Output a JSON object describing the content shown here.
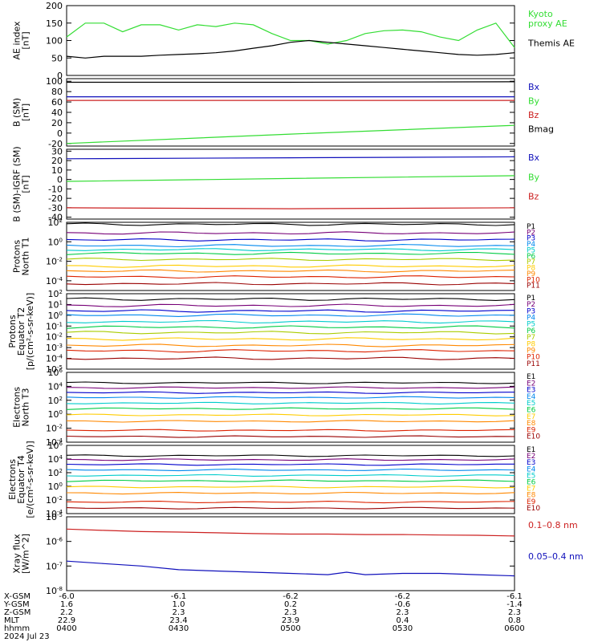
{
  "chart_data": [
    {
      "id": "ae",
      "type": "line",
      "ylabel": [
        "AE index",
        "[nT]"
      ],
      "yticks": [
        "200",
        "150",
        "100",
        "50",
        "0"
      ],
      "ylim": [
        0,
        200
      ],
      "series": [
        {
          "name": "Kyoto proxy AE",
          "label_lines": [
            "Kyoto",
            "proxy AE"
          ],
          "color": "#33dd33",
          "x": [
            0,
            5,
            10,
            15,
            20,
            25,
            30,
            35,
            40,
            45,
            50,
            55,
            60,
            65,
            70,
            75,
            80,
            85,
            90,
            95,
            100,
            105,
            110,
            115,
            120
          ],
          "values": [
            110,
            150,
            150,
            125,
            145,
            145,
            130,
            145,
            140,
            150,
            145,
            120,
            100,
            100,
            90,
            100,
            120,
            128,
            130,
            125,
            110,
            100,
            130,
            150,
            80
          ]
        },
        {
          "name": "Themis AE",
          "label_lines": [
            "Themis AE"
          ],
          "color": "#000000",
          "x": [
            0,
            5,
            10,
            15,
            20,
            25,
            30,
            35,
            40,
            45,
            50,
            55,
            60,
            65,
            70,
            75,
            80,
            85,
            90,
            95,
            100,
            105,
            110,
            115,
            120
          ],
          "values": [
            55,
            50,
            55,
            55,
            55,
            58,
            60,
            62,
            65,
            70,
            78,
            85,
            95,
            100,
            95,
            90,
            85,
            80,
            75,
            70,
            65,
            60,
            58,
            60,
            65
          ]
        }
      ]
    },
    {
      "id": "bsm",
      "type": "line",
      "ylabel": [
        "B (SM)",
        "[nT]"
      ],
      "yticks": [
        "100",
        "80",
        "60",
        "40",
        "20",
        "0",
        "-20"
      ],
      "ylim": [
        -25,
        105
      ],
      "series": [
        {
          "name": "Bx",
          "color": "#1010bb",
          "x": [
            0,
            60,
            120
          ],
          "values": [
            70,
            70,
            70
          ]
        },
        {
          "name": "By",
          "color": "#33dd33",
          "x": [
            0,
            60,
            120
          ],
          "values": [
            -20,
            -2,
            15
          ]
        },
        {
          "name": "Bz",
          "color": "#cc2020",
          "x": [
            0,
            60,
            120
          ],
          "values": [
            63,
            63,
            63
          ]
        },
        {
          "name": "Bmag",
          "color": "#000000",
          "x": [
            0,
            60,
            120
          ],
          "values": [
            98,
            98,
            99
          ]
        }
      ]
    },
    {
      "id": "bigrf",
      "type": "line",
      "ylabel": [
        "B (SM)-IGRF (SM)",
        "[nT]"
      ],
      "yticks": [
        "30",
        "20",
        "10",
        "0",
        "-10",
        "-20",
        "-30",
        "-40"
      ],
      "ylim": [
        -42,
        32
      ],
      "series": [
        {
          "name": "Bx",
          "color": "#1010bb",
          "x": [
            0,
            60,
            120
          ],
          "values": [
            22,
            23,
            24
          ]
        },
        {
          "name": "By",
          "color": "#33dd33",
          "x": [
            0,
            60,
            120
          ],
          "values": [
            -2,
            1,
            4
          ]
        },
        {
          "name": "Bz",
          "color": "#cc2020",
          "x": [
            0,
            60,
            120
          ],
          "values": [
            -30,
            -31,
            -30
          ]
        }
      ]
    },
    {
      "id": "pnt1",
      "type": "line",
      "log": true,
      "ylabel": [
        "Protons",
        "North T1"
      ],
      "yticks": [
        "10^2",
        "10^0",
        "10^-2",
        "10^-4"
      ],
      "ylim": [
        -5,
        2
      ],
      "channels": [
        "P1",
        "P2",
        "P3",
        "P4",
        "P5",
        "P6",
        "P7",
        "P8",
        "P9",
        "P10",
        "P11"
      ],
      "colors": [
        "#000000",
        "#770077",
        "#0000cc",
        "#0088ee",
        "#00cccc",
        "#00cc44",
        "#aacc00",
        "#ffcc00",
        "#ff8800",
        "#dd2200",
        "#990000"
      ],
      "levels": [
        1.8,
        0.9,
        0.2,
        -0.4,
        -0.8,
        -1.2,
        -1.8,
        -2.5,
        -3.0,
        -3.6,
        -4.3
      ]
    },
    {
      "id": "pet2",
      "type": "line",
      "log": true,
      "ylabel": [
        "Protons",
        "Equator T2",
        "[p/(cm²-s-sr-keV)]"
      ],
      "yticks": [
        "10^2",
        "10^1",
        "10^0",
        "10^-1",
        "10^-2",
        "10^-3",
        "10^-4",
        "10^-5"
      ],
      "ylim": [
        -5,
        2
      ],
      "channels": [
        "P1",
        "P2",
        "P3",
        "P4",
        "P5",
        "P6",
        "P7",
        "P8",
        "P9",
        "P10",
        "P11"
      ],
      "colors": [
        "#000000",
        "#770077",
        "#0000cc",
        "#0088ee",
        "#00cccc",
        "#00cc44",
        "#aacc00",
        "#ffcc00",
        "#ff8800",
        "#dd2200",
        "#990000"
      ],
      "levels": [
        1.5,
        0.9,
        0.4,
        0.0,
        -0.6,
        -1.1,
        -1.6,
        -2.2,
        -2.8,
        -3.3,
        -4.0
      ]
    },
    {
      "id": "ent3",
      "type": "line",
      "log": true,
      "ylabel": [
        "Electrons",
        "North T3"
      ],
      "yticks": [
        "10^6",
        "10^4",
        "10^2",
        "10^0",
        "10^-2",
        "10^-4"
      ],
      "ylim": [
        -4,
        6
      ],
      "channels": [
        "E1",
        "E2",
        "E3",
        "E4",
        "E5",
        "E6",
        "E7",
        "E8",
        "E9",
        "E10"
      ],
      "colors": [
        "#000000",
        "#770077",
        "#0000cc",
        "#0088ee",
        "#00cccc",
        "#00cc44",
        "#ffcc00",
        "#ff8800",
        "#dd2200",
        "#990000"
      ],
      "levels": [
        4.5,
        3.8,
        3.1,
        2.4,
        1.6,
        0.8,
        -0.1,
        -1.0,
        -2.3,
        -3.2
      ]
    },
    {
      "id": "eet4",
      "type": "line",
      "log": true,
      "ylabel": [
        "Electrons",
        "Equator T4",
        "[e/(cm²-s-sr-keV)]"
      ],
      "yticks": [
        "10^6",
        "10^4",
        "10^2",
        "10^0",
        "10^-2",
        "10^-4"
      ],
      "ylim": [
        -4,
        6
      ],
      "channels": [
        "E1",
        "E2",
        "E3",
        "E4",
        "E5",
        "E6",
        "E7",
        "E8",
        "E9",
        "E10"
      ],
      "colors": [
        "#000000",
        "#770077",
        "#0000cc",
        "#0088ee",
        "#00cccc",
        "#00cc44",
        "#ffcc00",
        "#ff8800",
        "#dd2200",
        "#990000"
      ],
      "levels": [
        4.5,
        3.9,
        3.2,
        2.4,
        1.6,
        0.8,
        -0.1,
        -1.0,
        -2.3,
        -3.2
      ]
    },
    {
      "id": "xray",
      "type": "line",
      "log": true,
      "ylabel": [
        "Xray flux",
        "[W/m^2]"
      ],
      "yticks": [
        "10^-5",
        "10^-6",
        "10^-7",
        "10^-8"
      ],
      "ylim": [
        -8,
        -5
      ],
      "series": [
        {
          "name": "0.1–0.8 nm",
          "color": "#cc2020",
          "x": [
            0,
            10,
            20,
            30,
            40,
            50,
            60,
            70,
            80,
            90,
            100,
            110,
            120
          ],
          "values": [
            -5.5,
            -5.55,
            -5.6,
            -5.62,
            -5.65,
            -5.68,
            -5.7,
            -5.7,
            -5.72,
            -5.72,
            -5.74,
            -5.75,
            -5.78
          ]
        },
        {
          "name": "0.05–0.4 nm",
          "color": "#1010bb",
          "x": [
            0,
            10,
            20,
            30,
            40,
            50,
            60,
            70,
            75,
            80,
            90,
            100,
            110,
            120
          ],
          "values": [
            -6.8,
            -6.9,
            -7.0,
            -7.15,
            -7.2,
            -7.25,
            -7.3,
            -7.35,
            -7.25,
            -7.35,
            -7.3,
            -7.3,
            -7.35,
            -7.4
          ]
        }
      ]
    }
  ],
  "x_axis": {
    "row_labels": [
      "X-GSM",
      "Y-GSM",
      "Z-GSM",
      "MLT",
      "hhmm"
    ],
    "columns": [
      {
        "x": 0,
        "values": [
          "-6.0",
          "1.6",
          "2.2",
          "22.9",
          "0400"
        ]
      },
      {
        "x": 30,
        "values": [
          "-6.1",
          "1.0",
          "2.3",
          "23.4",
          "0430"
        ]
      },
      {
        "x": 60,
        "values": [
          "-6.2",
          "0.2",
          "2.3",
          "23.9",
          "0500"
        ]
      },
      {
        "x": 90,
        "values": [
          "-6.2",
          "-0.6",
          "2.3",
          "0.4",
          "0530"
        ]
      },
      {
        "x": 120,
        "values": [
          "-6.1",
          "-1.4",
          "2.3",
          "0.8",
          "0600"
        ]
      }
    ],
    "date": "2024 Jul 23"
  }
}
